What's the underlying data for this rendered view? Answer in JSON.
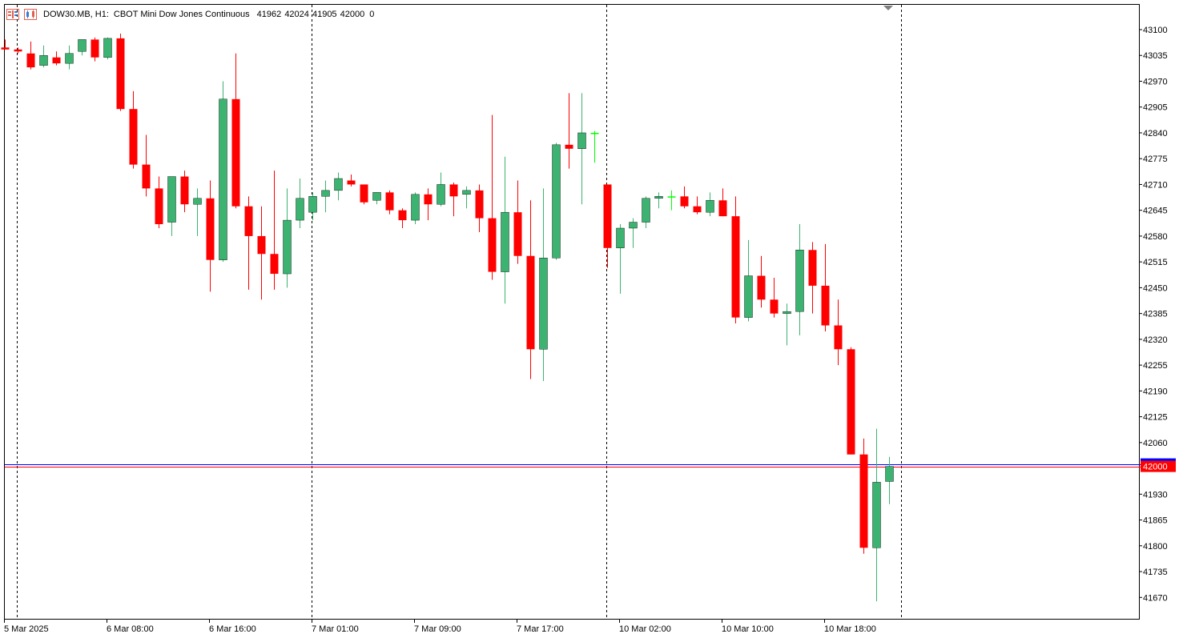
{
  "header": {
    "symbol_timeframe": "DOW30.MB, H1:",
    "description": "CBOT Mini Dow Jones Continuous",
    "ohlc": "41962 42024 41905 42000",
    "volume": "0"
  },
  "icons": [
    "one-click-trading-icon",
    "chart-icon",
    "shift-marker-icon"
  ],
  "colors": {
    "bull": "#3cb371",
    "bear": "#ff0000",
    "bid_line": "#ff0000",
    "ask_line": "#0000ff",
    "price_tag": "#ff0000",
    "grid": "#000000",
    "axis": "#000000",
    "doji": "#00ff00"
  },
  "chart_data": {
    "type": "candlestick",
    "title": "DOW30.MB, H1: CBOT Mini Dow Jones Continuous",
    "y_ticks": [
      43100,
      43035,
      42970,
      42905,
      42840,
      42775,
      42710,
      42645,
      42580,
      42515,
      42450,
      42385,
      42320,
      42255,
      42190,
      42125,
      42060,
      41930,
      41865,
      41800,
      41735,
      41670
    ],
    "y_range": [
      41630,
      43140
    ],
    "current_price": 42000,
    "current_price_label": "42000",
    "ask_price": 42006,
    "x_labels": [
      "5 Mar 2025",
      "6 Mar 08:00",
      "6 Mar 16:00",
      "7 Mar 01:00",
      "7 Mar 09:00",
      "7 Mar 17:00",
      "10 Mar 02:00",
      "10 Mar 10:00",
      "10 Mar 18:00"
    ],
    "x_label_bars": [
      0,
      8,
      16,
      24,
      32,
      40,
      48,
      56,
      64
    ],
    "day_separator_bars": [
      1,
      24,
      47,
      70
    ],
    "grid": false,
    "candles": [
      [
        43055,
        43075,
        43050,
        43050
      ],
      [
        43050,
        43055,
        43040,
        43045
      ],
      [
        43040,
        43070,
        43000,
        43005
      ],
      [
        43010,
        43060,
        43005,
        43035
      ],
      [
        43030,
        43045,
        43010,
        43015
      ],
      [
        43015,
        43060,
        43000,
        43040
      ],
      [
        43045,
        43075,
        43035,
        43075
      ],
      [
        43075,
        43080,
        43020,
        43030
      ],
      [
        43030,
        43080,
        43025,
        43078
      ],
      [
        43078,
        43090,
        42895,
        42900
      ],
      [
        42900,
        42945,
        42750,
        42760
      ],
      [
        42760,
        42835,
        42680,
        42700
      ],
      [
        42700,
        42730,
        42600,
        42610
      ],
      [
        42615,
        42730,
        42580,
        42730
      ],
      [
        42730,
        42745,
        42640,
        42660
      ],
      [
        42660,
        42700,
        42580,
        42675
      ],
      [
        42675,
        42720,
        42440,
        42520
      ],
      [
        42520,
        42970,
        42515,
        42925
      ],
      [
        42925,
        43040,
        42650,
        42655
      ],
      [
        42655,
        42680,
        42445,
        42580
      ],
      [
        42580,
        42655,
        42420,
        42535
      ],
      [
        42535,
        42745,
        42445,
        42485
      ],
      [
        42485,
        42700,
        42450,
        42620
      ],
      [
        42620,
        42725,
        42600,
        42675
      ],
      [
        42640,
        42690,
        42620,
        42680
      ],
      [
        42680,
        42720,
        42640,
        42695
      ],
      [
        42695,
        42740,
        42670,
        42725
      ],
      [
        42720,
        42735,
        42705,
        42710
      ],
      [
        42710,
        42710,
        42660,
        42665
      ],
      [
        42670,
        42690,
        42660,
        42690
      ],
      [
        42690,
        42695,
        42635,
        42645
      ],
      [
        42645,
        42650,
        42600,
        42620
      ],
      [
        42620,
        42690,
        42610,
        42685
      ],
      [
        42685,
        42700,
        42620,
        42660
      ],
      [
        42660,
        42740,
        42655,
        42710
      ],
      [
        42710,
        42715,
        42630,
        42680
      ],
      [
        42685,
        42705,
        42650,
        42695
      ],
      [
        42695,
        42710,
        42590,
        42625
      ],
      [
        42625,
        42885,
        42470,
        42490
      ],
      [
        42490,
        42780,
        42410,
        42640
      ],
      [
        42640,
        42720,
        42510,
        42530
      ],
      [
        42530,
        42670,
        42220,
        42295
      ],
      [
        42295,
        42700,
        42215,
        42525
      ],
      [
        42525,
        42815,
        42520,
        42810
      ],
      [
        42810,
        42940,
        42750,
        42800
      ],
      [
        42800,
        42940,
        42660,
        42840
      ],
      [
        42840,
        42845,
        42765,
        42840
      ],
      [
        42710,
        42710,
        42500,
        42550
      ],
      [
        42550,
        42610,
        42435,
        42600
      ],
      [
        42600,
        42625,
        42550,
        42615
      ],
      [
        42615,
        42680,
        42600,
        42675
      ],
      [
        42675,
        42690,
        42650,
        42680
      ],
      [
        42680,
        42695,
        42645,
        42680
      ],
      [
        42680,
        42705,
        42650,
        42655
      ],
      [
        42655,
        42680,
        42635,
        42640
      ],
      [
        42640,
        42690,
        42630,
        42670
      ],
      [
        42670,
        42700,
        42630,
        42630
      ],
      [
        42630,
        42680,
        42360,
        42375
      ],
      [
        42375,
        42570,
        42365,
        42480
      ],
      [
        42480,
        42530,
        42400,
        42420
      ],
      [
        42420,
        42475,
        42375,
        42385
      ],
      [
        42385,
        42410,
        42305,
        42390
      ],
      [
        42390,
        42610,
        42330,
        42545
      ],
      [
        42545,
        42565,
        42385,
        42455
      ],
      [
        42455,
        42560,
        42340,
        42355
      ],
      [
        42355,
        42420,
        42255,
        42295
      ],
      [
        42295,
        42300,
        42030,
        42030
      ],
      [
        42030,
        42070,
        41780,
        41795
      ],
      [
        41795,
        42095,
        41660,
        41960
      ],
      [
        41962,
        42024,
        41905,
        42000
      ]
    ]
  }
}
